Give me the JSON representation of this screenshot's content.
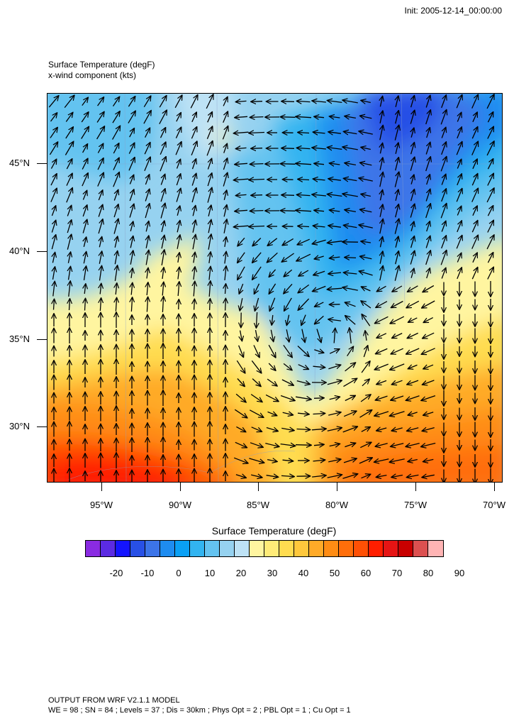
{
  "init_text": "Init: 2005-12-14_00:00:00",
  "titles": {
    "line1": "Surface Temperature   (degF)",
    "line2": "x-wind component   (kts)"
  },
  "map": {
    "lat_labels": [
      "45°N",
      "40°N",
      "35°N",
      "30°N"
    ],
    "lon_labels": [
      "95°W",
      "90°W",
      "85°W",
      "80°W",
      "75°W",
      "70°W"
    ]
  },
  "colorbar": {
    "title": "Surface Temperature   (degF)",
    "colors": [
      "#8a2be2",
      "#5b2be2",
      "#1414ff",
      "#2850e6",
      "#3c74e8",
      "#1e8cf0",
      "#0aa0f5",
      "#32b4f0",
      "#64c3f0",
      "#96d2f0",
      "#bee2f5",
      "#fff5a0",
      "#ffeb78",
      "#ffdc50",
      "#ffc83c",
      "#ffaa28",
      "#ff8c14",
      "#ff6e0a",
      "#ff5005",
      "#ff1e00",
      "#e61414",
      "#c80000",
      "#dc5050",
      "#ffb4b4"
    ],
    "labels": [
      "-20",
      "-10",
      "0",
      "10",
      "20",
      "30",
      "40",
      "50",
      "60",
      "70",
      "80",
      "90"
    ]
  },
  "footer": {
    "line1": "OUTPUT FROM WRF V2.1.1 MODEL",
    "line2": "WE = 98 ; SN = 84 ; Levels = 37 ; Dis = 30km ; Phys Opt = 2 ; PBL Opt = 1 ; Cu Opt = 1"
  }
}
